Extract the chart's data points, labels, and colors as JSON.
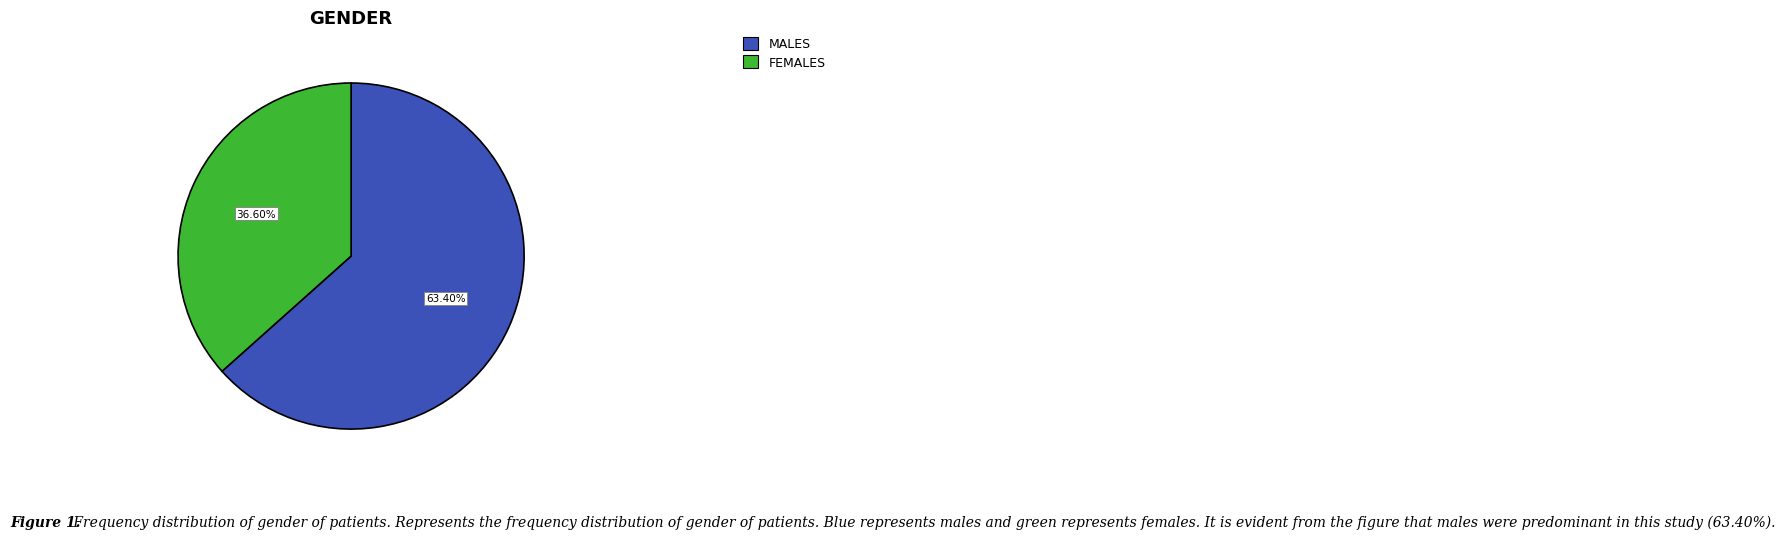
{
  "title": "GENDER",
  "slices": [
    63.4,
    36.6
  ],
  "labels": [
    "MALES",
    "FEMALES"
  ],
  "colors": [
    "#3d52b8",
    "#3cb832"
  ],
  "autopct_labels": [
    "63.40%",
    "36.60%"
  ],
  "startangle": 90,
  "legend_labels": [
    "MALES",
    "FEMALES"
  ],
  "caption_bold": "Figure 1.",
  "caption_rest": " Frequency distribution of gender of patients. Represents the frequency distribution of gender of patients. Blue represents males and green represents females. It is evident from the figure that males were predominant in this study (63.40%).",
  "title_fontsize": 13,
  "legend_fontsize": 9,
  "caption_fontsize": 10,
  "background_color": "#ffffff"
}
